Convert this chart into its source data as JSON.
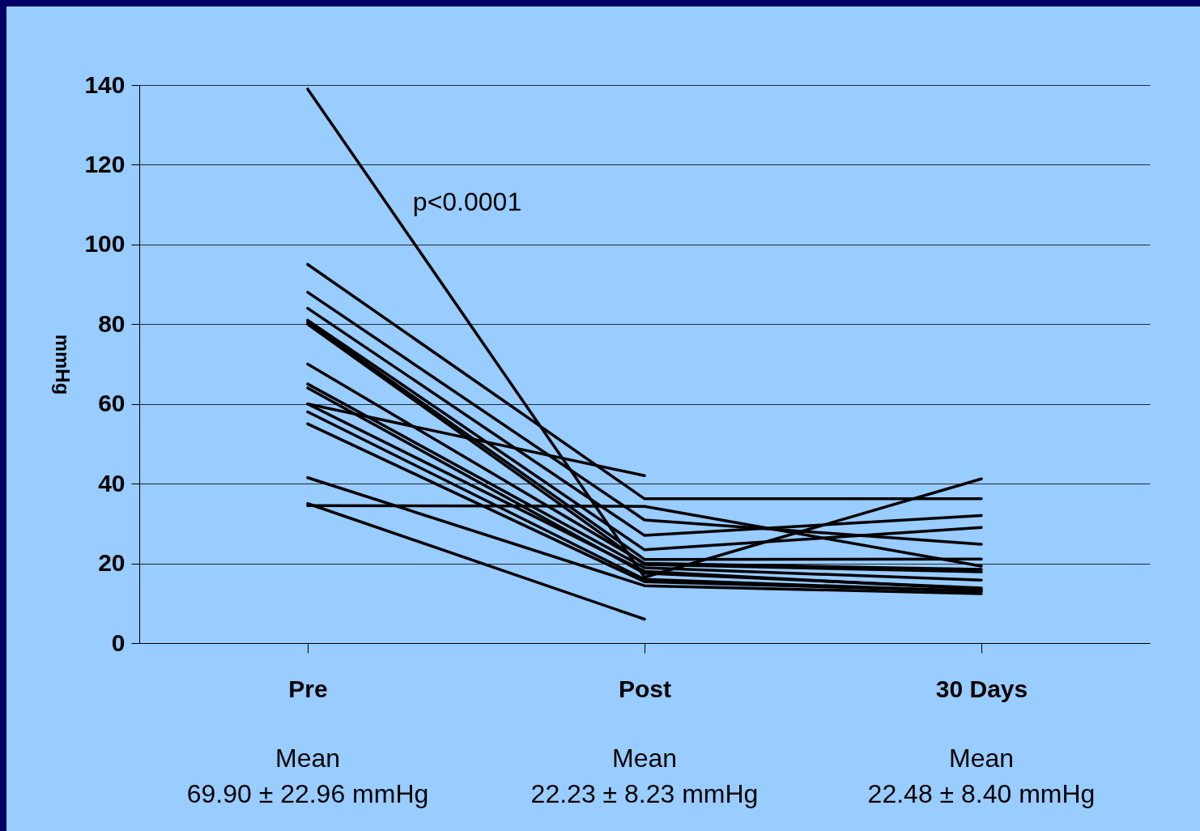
{
  "chart_data": {
    "type": "line",
    "ylabel": "mmHg",
    "categories": [
      "Pre",
      "Post",
      "30 Days"
    ],
    "ylim": [
      0,
      140
    ],
    "yticks": [
      0,
      20,
      40,
      60,
      80,
      100,
      120,
      140
    ],
    "grid": "y",
    "legend": false,
    "marker": "none",
    "line_style": "solid",
    "annotations": [
      "p<0.0001",
      "Mean\n69.90 ± 22.96 mmHg",
      "Mean\n22.23 ± 8.23 mmHg",
      "Mean\n22.48 ± 8.40 mmHg"
    ],
    "series": [
      {
        "color": "#000000",
        "values": [
          139,
          16.5,
          41.2
        ]
      },
      {
        "color": "#000000",
        "values": [
          95,
          36.2,
          36.2
        ]
      },
      {
        "color": "#000000",
        "values": [
          88,
          30.9,
          24.8
        ]
      },
      {
        "color": "#000000",
        "values": [
          84,
          27,
          32
        ]
      },
      {
        "color": "#000000",
        "values": [
          81,
          23.4,
          29
        ]
      },
      {
        "color": "#000000",
        "values": [
          80.5,
          21,
          21.1
        ]
      },
      {
        "color": "#000000",
        "values": [
          80,
          19.7,
          17.9
        ]
      },
      {
        "color": "#000000",
        "values": [
          70,
          20,
          18.5
        ]
      },
      {
        "color": "#000000",
        "values": [
          65,
          18.9,
          15.8
        ]
      },
      {
        "color": "#000000",
        "values": [
          64,
          17.5,
          13.8
        ]
      },
      {
        "color": "#000000",
        "values": [
          60,
          42,
          null
        ]
      },
      {
        "color": "#000000",
        "values": [
          60,
          18,
          13.5
        ]
      },
      {
        "color": "#000000",
        "values": [
          58,
          16,
          13
        ]
      },
      {
        "color": "#000000",
        "values": [
          55,
          15.4,
          13
        ]
      },
      {
        "color": "#000000",
        "values": [
          41.5,
          14.4,
          12.4
        ]
      },
      {
        "color": "#000000",
        "values": [
          35,
          6,
          null
        ]
      },
      {
        "color": "#000000",
        "values": [
          34.5,
          34.3,
          19.3
        ]
      }
    ]
  }
}
